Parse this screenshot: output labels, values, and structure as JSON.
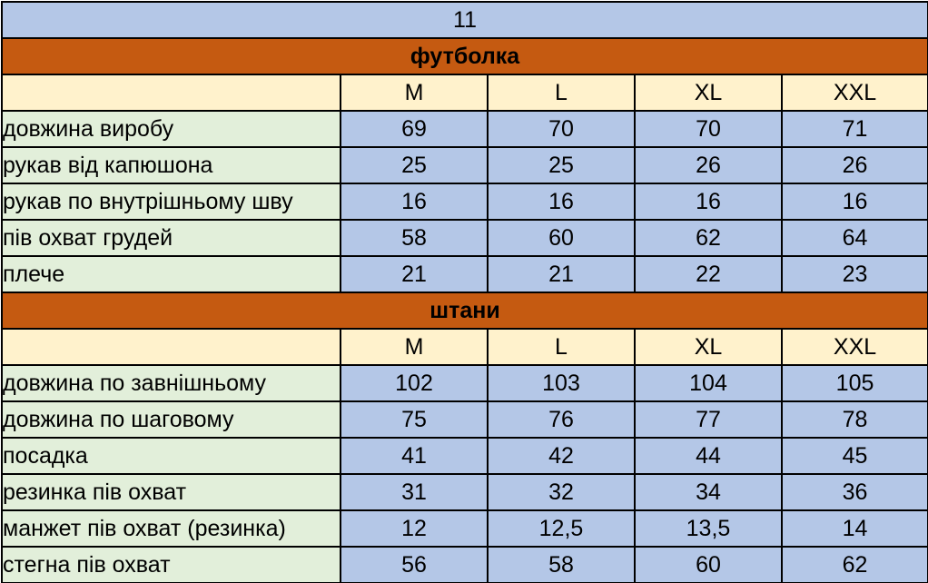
{
  "colors": {
    "title_bg": "#b4c7e7",
    "section_bg": "#c55a11",
    "header_bg": "#fff2cc",
    "label_bg": "#e2efda",
    "value_bg": "#b4c7e7"
  },
  "title": "11",
  "sizes": [
    "M",
    "L",
    "XL",
    "XXL"
  ],
  "sections": [
    {
      "name": "футболка",
      "rows": [
        {
          "label": "довжина виробу",
          "values": [
            "69",
            "70",
            "70",
            "71"
          ]
        },
        {
          "label": "рукав від капюшона",
          "values": [
            "25",
            "25",
            "26",
            "26"
          ]
        },
        {
          "label": "рукав по внутрішньому шву",
          "values": [
            "16",
            "16",
            "16",
            "16"
          ]
        },
        {
          "label": "пів охват грудей",
          "values": [
            "58",
            "60",
            "62",
            "64"
          ]
        },
        {
          "label": "плече",
          "values": [
            "21",
            "21",
            "22",
            "23"
          ]
        }
      ]
    },
    {
      "name": "штани",
      "rows": [
        {
          "label": "довжина по завнішньому",
          "values": [
            "102",
            "103",
            "104",
            "105"
          ]
        },
        {
          "label": "довжина по шаговому",
          "values": [
            "75",
            "76",
            "77",
            "78"
          ]
        },
        {
          "label": "посадка",
          "values": [
            "41",
            "42",
            "44",
            "45"
          ]
        },
        {
          "label": "резинка пів охват",
          "values": [
            "31",
            "32",
            "34",
            "36"
          ]
        },
        {
          "label": "манжет пів охват (резинка)",
          "values": [
            "12",
            "12,5",
            "13,5",
            "14"
          ]
        },
        {
          "label": "стегна пів охват",
          "values": [
            "56",
            "58",
            "60",
            "62"
          ]
        }
      ]
    }
  ]
}
